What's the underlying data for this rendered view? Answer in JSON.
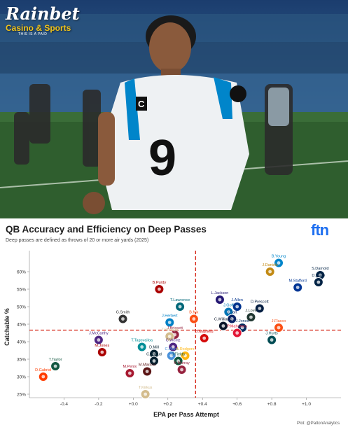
{
  "brand": {
    "name": "Rainbet",
    "subtitle": "Casino & Sports",
    "tag": "THIS IS A PAID",
    "colors": {
      "primary": "#ffffff",
      "accent": "#f2c318"
    }
  },
  "photo": {
    "jersey_number": "9",
    "jersey_patch": "C"
  },
  "chart": {
    "title": "QB Accuracy and Efficiency on Deep Passes",
    "subtitle": "Deep passes are defined as throws of 20 or more air yards (2025)",
    "logo_text": "ftn",
    "credit": "Plot: @PattonAnalytics"
  },
  "chart_data": {
    "type": "scatter",
    "xlabel": "EPA per Pass Attempt",
    "ylabel": "Catchable %",
    "xlim": [
      -0.6,
      1.2
    ],
    "ylim": [
      24,
      66
    ],
    "x_ticks": [
      -0.4,
      -0.2,
      0.0,
      0.2,
      0.4,
      0.6,
      0.8,
      1.0
    ],
    "x_tick_labels": [
      "-0.4",
      "-0.2",
      "+0.0",
      "+0.2",
      "+0.4",
      "+0.6",
      "+0.8",
      "+1.0"
    ],
    "y_ticks": [
      25,
      30,
      35,
      40,
      45,
      50,
      55,
      60
    ],
    "y_tick_labels": [
      "25%",
      "30%",
      "35%",
      "40%",
      "45%",
      "50%",
      "55%",
      "60%"
    ],
    "reference_lines": {
      "x": 0.36,
      "y": 43.3
    },
    "grid": false,
    "points": [
      {
        "name": "B.Young",
        "x": 0.84,
        "y": 62.5,
        "color": "#0085ca"
      },
      {
        "name": "J.Daniels",
        "x": 0.79,
        "y": 60.0,
        "color": "#c28a14"
      },
      {
        "name": "S.Darnold",
        "x": 1.08,
        "y": 59.0,
        "color": "#002244"
      },
      {
        "name": "D.Maye",
        "x": 1.07,
        "y": 57.0,
        "color": "#002244"
      },
      {
        "name": "M.Stafford",
        "x": 0.95,
        "y": 55.5,
        "color": "#003594"
      },
      {
        "name": "B.Purdy",
        "x": 0.15,
        "y": 55.0,
        "color": "#aa0000"
      },
      {
        "name": "L.Jackson",
        "x": 0.5,
        "y": 52.0,
        "color": "#241773"
      },
      {
        "name": "T.Lawrence",
        "x": 0.27,
        "y": 50.0,
        "color": "#006778"
      },
      {
        "name": "J.Allen",
        "x": 0.6,
        "y": 50.0,
        "color": "#00338d"
      },
      {
        "name": "D.Prescott",
        "x": 0.73,
        "y": 49.5,
        "color": "#041e42"
      },
      {
        "name": "G.Smith",
        "x": -0.06,
        "y": 46.5,
        "color": "#333333"
      },
      {
        "name": "J.Goff",
        "x": 0.55,
        "y": 48.5,
        "color": "#0076b6"
      },
      {
        "name": "J.Love",
        "x": 0.68,
        "y": 47.0,
        "color": "#203731"
      },
      {
        "name": "J.Herbert",
        "x": 0.21,
        "y": 45.5,
        "color": "#0080c6"
      },
      {
        "name": "B.Nix",
        "x": 0.35,
        "y": 46.5,
        "color": "#fb4f14"
      },
      {
        "name": "J.Dart",
        "x": 0.57,
        "y": 46.5,
        "color": "#0b2265"
      },
      {
        "name": "C.Williams",
        "x": 0.52,
        "y": 44.5,
        "color": "#0b162a"
      },
      {
        "name": "J.Jones",
        "x": 0.63,
        "y": 44.0,
        "color": "#002c5f"
      },
      {
        "name": "J.Flacco",
        "x": 0.84,
        "y": 44.0,
        "color": "#fb4f14"
      },
      {
        "name": "P.Mahomes",
        "x": 0.6,
        "y": 42.5,
        "color": "#e31837"
      },
      {
        "name": "J.Brissett",
        "x": 0.24,
        "y": 42.0,
        "color": "#97233f"
      },
      {
        "name": "T.Shough",
        "x": 0.21,
        "y": 41.5,
        "color": "#d3bc8d"
      },
      {
        "name": "B.Mayfield",
        "x": 0.41,
        "y": 41.0,
        "color": "#d50a0a"
      },
      {
        "name": "J.Hurts",
        "x": 0.8,
        "y": 40.5,
        "color": "#004c54"
      },
      {
        "name": "J.McCarthy",
        "x": -0.2,
        "y": 40.5,
        "color": "#4f2683"
      },
      {
        "name": "T.Tagovailoa",
        "x": 0.05,
        "y": 38.5,
        "color": "#008e97"
      },
      {
        "name": "C.Wentz",
        "x": 0.23,
        "y": 38.5,
        "color": "#4f2683"
      },
      {
        "name": "M.Jones",
        "x": -0.18,
        "y": 37.0,
        "color": "#aa0000"
      },
      {
        "name": "D.Mill",
        "x": 0.12,
        "y": 36.5,
        "color": "#03202f"
      },
      {
        "name": "C.Ward",
        "x": 0.22,
        "y": 36.0,
        "color": "#4b92db"
      },
      {
        "name": "A.Rodgers",
        "x": 0.3,
        "y": 36.0,
        "color": "#ffb612"
      },
      {
        "name": "J.Fields",
        "x": 0.26,
        "y": 34.5,
        "color": "#125740"
      },
      {
        "name": "C.Stroud",
        "x": 0.12,
        "y": 34.5,
        "color": "#03202f"
      },
      {
        "name": "T.Taylor",
        "x": -0.45,
        "y": 33.0,
        "color": "#125740"
      },
      {
        "name": "M.Penix",
        "x": -0.02,
        "y": 31.0,
        "color": "#a71930"
      },
      {
        "name": "M.Mariota",
        "x": 0.08,
        "y": 31.5,
        "color": "#5a1414"
      },
      {
        "name": "K.Murray",
        "x": 0.28,
        "y": 32.0,
        "color": "#97233f"
      },
      {
        "name": "D.Gabriel",
        "x": -0.52,
        "y": 30.0,
        "color": "#ff3c00"
      },
      {
        "name": "T.Kirkus",
        "x": 0.07,
        "y": 25.0,
        "color": "#d3bc8d"
      }
    ]
  }
}
